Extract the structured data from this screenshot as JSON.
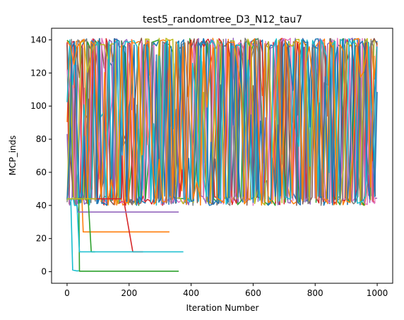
{
  "chart_data": {
    "type": "line",
    "title": "test5_randomtree_D3_N12_tau7",
    "xlabel": "Iteration Number",
    "ylabel": "MCP_inds",
    "xlim": [
      -50,
      1050
    ],
    "ylim": [
      -7,
      147
    ],
    "xticks": [
      0,
      200,
      400,
      600,
      800,
      1000
    ],
    "yticks": [
      0,
      20,
      40,
      60,
      80,
      100,
      120,
      140
    ],
    "grid": false,
    "legend": "none",
    "oscillation": {
      "description_values": "dense oscillating series between about 40 and 141 from iteration 0 to 1000",
      "y_min": 40,
      "y_max": 141,
      "x_start": 0,
      "x_end": 1000,
      "series_count": 12
    },
    "series": [
      {
        "color": "#2ca02c",
        "points": [
          [
            0,
            44
          ],
          [
            38,
            44
          ],
          [
            40,
            0.3
          ],
          [
            360,
            0.3
          ]
        ]
      },
      {
        "color": "#17becf",
        "points": [
          [
            0,
            44
          ],
          [
            12,
            44
          ],
          [
            18,
            1
          ],
          [
            30,
            0.5
          ],
          [
            38,
            0.5
          ]
        ]
      },
      {
        "color": "#ff7f0e",
        "points": [
          [
            0,
            44
          ],
          [
            48,
            44
          ],
          [
            52,
            24
          ],
          [
            330,
            24
          ]
        ]
      },
      {
        "color": "#d62728",
        "points": [
          [
            0,
            44
          ],
          [
            175,
            44
          ],
          [
            178,
            70
          ],
          [
            182,
            44
          ],
          [
            212,
            12
          ],
          [
            245,
            12
          ]
        ]
      },
      {
        "color": "#9467bd",
        "points": [
          [
            0,
            44
          ],
          [
            28,
            44
          ],
          [
            36,
            36
          ],
          [
            360,
            36
          ]
        ]
      },
      {
        "color": "#2ca02c",
        "points": [
          [
            0,
            44
          ],
          [
            68,
            44
          ],
          [
            78,
            12
          ],
          [
            90,
            12
          ]
        ]
      },
      {
        "color": "#17becf",
        "points": [
          [
            0,
            44
          ],
          [
            20,
            44
          ],
          [
            24,
            40
          ],
          [
            32,
            40
          ],
          [
            40,
            12
          ],
          [
            375,
            12
          ]
        ]
      },
      {
        "color": "#bcbd22",
        "points": [
          [
            0,
            44
          ],
          [
            95,
            44
          ]
        ]
      }
    ],
    "palette": [
      "#1f77b4",
      "#ff7f0e",
      "#2ca02c",
      "#d62728",
      "#9467bd",
      "#8c564b",
      "#e377c2",
      "#7f7f7f",
      "#bcbd22",
      "#17becf"
    ]
  }
}
